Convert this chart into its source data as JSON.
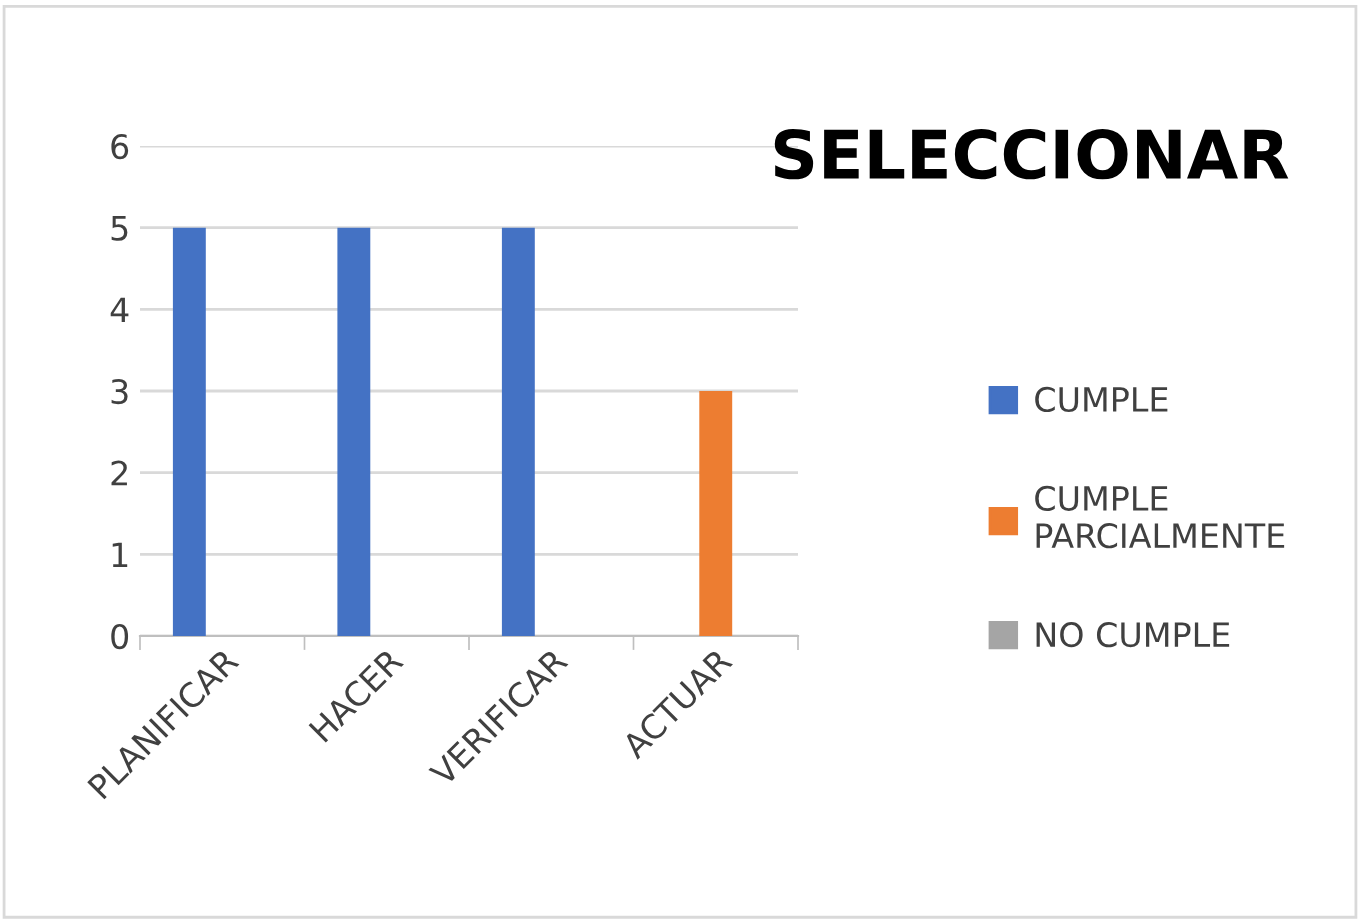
{
  "chart_data": {
    "type": "bar",
    "title": "SELECCIONAR",
    "categories": [
      "PLANIFICAR",
      "HACER",
      "VERIFICAR",
      "ACTUAR"
    ],
    "series": [
      {
        "name": "CUMPLE",
        "color": "#4472c4",
        "values": [
          5,
          5,
          5,
          0
        ]
      },
      {
        "name": "CUMPLE\nPARCIALMENTE",
        "color": "#ed7d31",
        "values": [
          0,
          0,
          0,
          3
        ]
      },
      {
        "name": "NO CUMPLE",
        "color": "#a5a5a5",
        "values": [
          0,
          0,
          0,
          0
        ]
      }
    ],
    "ylim": [
      0,
      6
    ],
    "yticks": [
      0,
      1,
      2,
      3,
      4,
      5,
      6
    ],
    "grid": "y",
    "legend": "right"
  }
}
